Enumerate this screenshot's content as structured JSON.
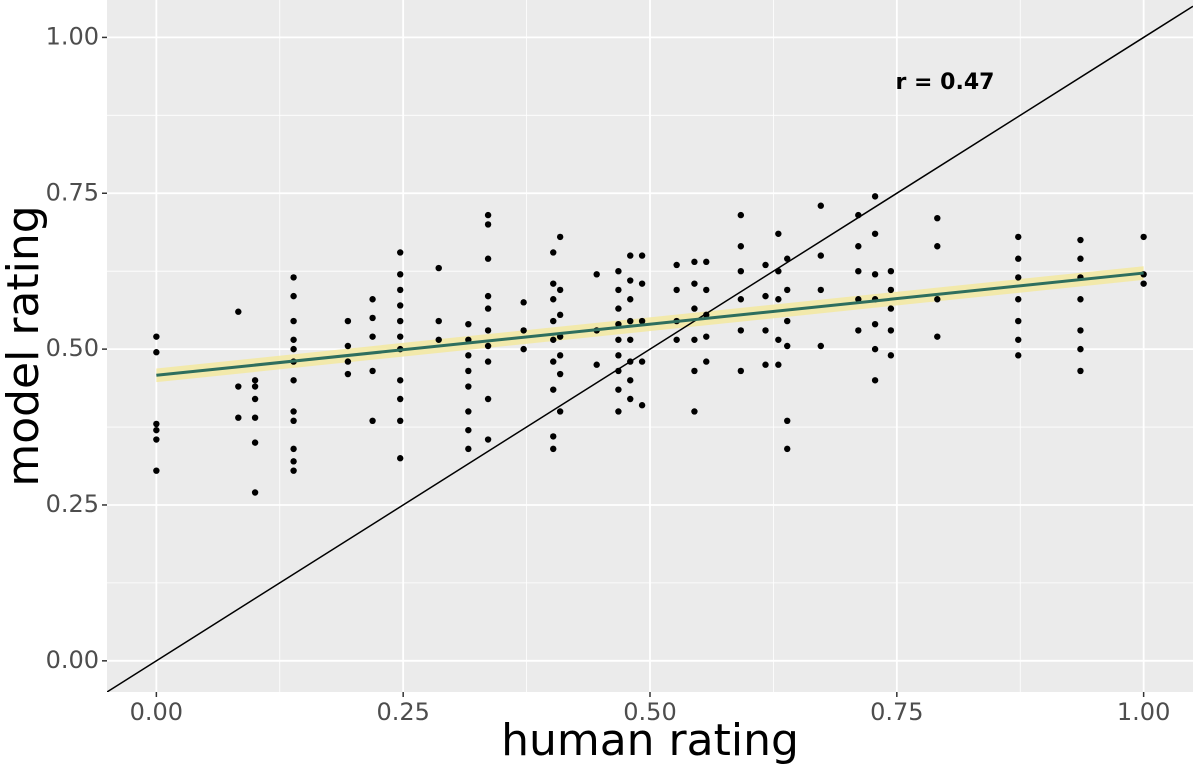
{
  "chart_data": {
    "type": "scatter",
    "x_label": "human rating",
    "y_label": "model rating",
    "annotation": "r = 0.47",
    "color": "#000000",
    "x": [
      0,
      0,
      0,
      0,
      0,
      0,
      0.083,
      0.083,
      0.083,
      0.1,
      0.1,
      0.1,
      0.1,
      0.1,
      0.1,
      0.139,
      0.139,
      0.139,
      0.139,
      0.139,
      0.139,
      0.139,
      0.139,
      0.139,
      0.139,
      0.139,
      0.139,
      0.194,
      0.194,
      0.194,
      0.194,
      0.219,
      0.219,
      0.219,
      0.219,
      0.219,
      0.247,
      0.247,
      0.247,
      0.247,
      0.247,
      0.247,
      0.247,
      0.247,
      0.247,
      0.247,
      0.247,
      0.286,
      0.286,
      0.286,
      0.316,
      0.316,
      0.316,
      0.316,
      0.316,
      0.316,
      0.316,
      0.316,
      0.336,
      0.336,
      0.336,
      0.336,
      0.336,
      0.336,
      0.336,
      0.336,
      0.336,
      0.336,
      0.372,
      0.372,
      0.372,
      0.402,
      0.402,
      0.402,
      0.402,
      0.402,
      0.402,
      0.402,
      0.402,
      0.402,
      0.409,
      0.409,
      0.409,
      0.409,
      0.409,
      0.409,
      0.409,
      0.446,
      0.446,
      0.446,
      0.468,
      0.468,
      0.468,
      0.468,
      0.468,
      0.468,
      0.468,
      0.468,
      0.468,
      0.48,
      0.48,
      0.48,
      0.48,
      0.48,
      0.48,
      0.48,
      0.48,
      0.492,
      0.492,
      0.492,
      0.492,
      0.492,
      0.527,
      0.527,
      0.527,
      0.527,
      0.545,
      0.545,
      0.545,
      0.545,
      0.545,
      0.545,
      0.557,
      0.557,
      0.557,
      0.557,
      0.557,
      0.592,
      0.592,
      0.592,
      0.592,
      0.592,
      0.592,
      0.617,
      0.617,
      0.617,
      0.617,
      0.63,
      0.63,
      0.63,
      0.63,
      0.63,
      0.639,
      0.639,
      0.639,
      0.639,
      0.639,
      0.639,
      0.673,
      0.673,
      0.673,
      0.673,
      0.711,
      0.711,
      0.711,
      0.711,
      0.711,
      0.728,
      0.728,
      0.728,
      0.728,
      0.728,
      0.728,
      0.728,
      0.744,
      0.744,
      0.744,
      0.744,
      0.744,
      0.791,
      0.791,
      0.791,
      0.791,
      0.873,
      0.873,
      0.873,
      0.873,
      0.873,
      0.873,
      0.873,
      0.936,
      0.936,
      0.936,
      0.936,
      0.936,
      0.936,
      0.936,
      1,
      1,
      1
    ],
    "values": [
      0.52,
      0.495,
      0.38,
      0.37,
      0.355,
      0.305,
      0.56,
      0.44,
      0.39,
      0.45,
      0.44,
      0.42,
      0.39,
      0.35,
      0.27,
      0.615,
      0.585,
      0.545,
      0.515,
      0.5,
      0.48,
      0.45,
      0.4,
      0.385,
      0.34,
      0.32,
      0.305,
      0.545,
      0.505,
      0.48,
      0.46,
      0.58,
      0.55,
      0.52,
      0.465,
      0.385,
      0.655,
      0.62,
      0.595,
      0.57,
      0.545,
      0.52,
      0.5,
      0.45,
      0.42,
      0.385,
      0.325,
      0.63,
      0.545,
      0.515,
      0.54,
      0.515,
      0.49,
      0.465,
      0.44,
      0.4,
      0.37,
      0.34,
      0.715,
      0.7,
      0.645,
      0.585,
      0.565,
      0.53,
      0.505,
      0.48,
      0.42,
      0.355,
      0.575,
      0.53,
      0.5,
      0.655,
      0.605,
      0.58,
      0.545,
      0.515,
      0.48,
      0.435,
      0.36,
      0.34,
      0.68,
      0.595,
      0.555,
      0.52,
      0.49,
      0.46,
      0.4,
      0.62,
      0.53,
      0.475,
      0.625,
      0.595,
      0.565,
      0.54,
      0.515,
      0.49,
      0.465,
      0.435,
      0.4,
      0.65,
      0.61,
      0.58,
      0.545,
      0.515,
      0.48,
      0.45,
      0.42,
      0.65,
      0.605,
      0.545,
      0.48,
      0.41,
      0.635,
      0.595,
      0.545,
      0.515,
      0.64,
      0.605,
      0.565,
      0.515,
      0.465,
      0.4,
      0.64,
      0.595,
      0.555,
      0.52,
      0.48,
      0.715,
      0.665,
      0.625,
      0.58,
      0.53,
      0.465,
      0.635,
      0.585,
      0.53,
      0.475,
      0.685,
      0.625,
      0.58,
      0.515,
      0.475,
      0.645,
      0.595,
      0.545,
      0.505,
      0.385,
      0.34,
      0.73,
      0.65,
      0.595,
      0.505,
      0.715,
      0.665,
      0.625,
      0.58,
      0.53,
      0.745,
      0.685,
      0.62,
      0.58,
      0.54,
      0.5,
      0.45,
      0.625,
      0.595,
      0.565,
      0.53,
      0.49,
      0.71,
      0.665,
      0.58,
      0.52,
      0.68,
      0.645,
      0.615,
      0.58,
      0.545,
      0.515,
      0.49,
      0.675,
      0.645,
      0.615,
      0.58,
      0.53,
      0.5,
      0.465,
      0.68,
      0.62,
      0.605
    ],
    "fit": {
      "x": [
        0,
        1
      ],
      "y": [
        0.458,
        0.622
      ],
      "lower": [
        0.447,
        0.611
      ],
      "upper": [
        0.469,
        0.633
      ],
      "color": "#2e6e5e",
      "band_color": "#f3e9a0"
    },
    "reference_line": {
      "x": [
        -0.05,
        1.05
      ],
      "y": [
        -0.05,
        1.05
      ],
      "color": "#000000"
    },
    "xlim": [
      -0.05,
      1.05
    ],
    "ylim": [
      -0.05,
      1.06
    ],
    "xticks": [
      {
        "value": 0,
        "label": "0.00"
      },
      {
        "value": 0.25,
        "label": "0.25"
      },
      {
        "value": 0.5,
        "label": "0.50"
      },
      {
        "value": 0.75,
        "label": "0.75"
      },
      {
        "value": 1,
        "label": "1.00"
      }
    ],
    "yticks": [
      {
        "value": 0,
        "label": "0.00"
      },
      {
        "value": 0.25,
        "label": "0.25"
      },
      {
        "value": 0.5,
        "label": "0.50"
      },
      {
        "value": 0.75,
        "label": "0.75"
      },
      {
        "value": 1,
        "label": "1.00"
      }
    ],
    "grid": true
  }
}
